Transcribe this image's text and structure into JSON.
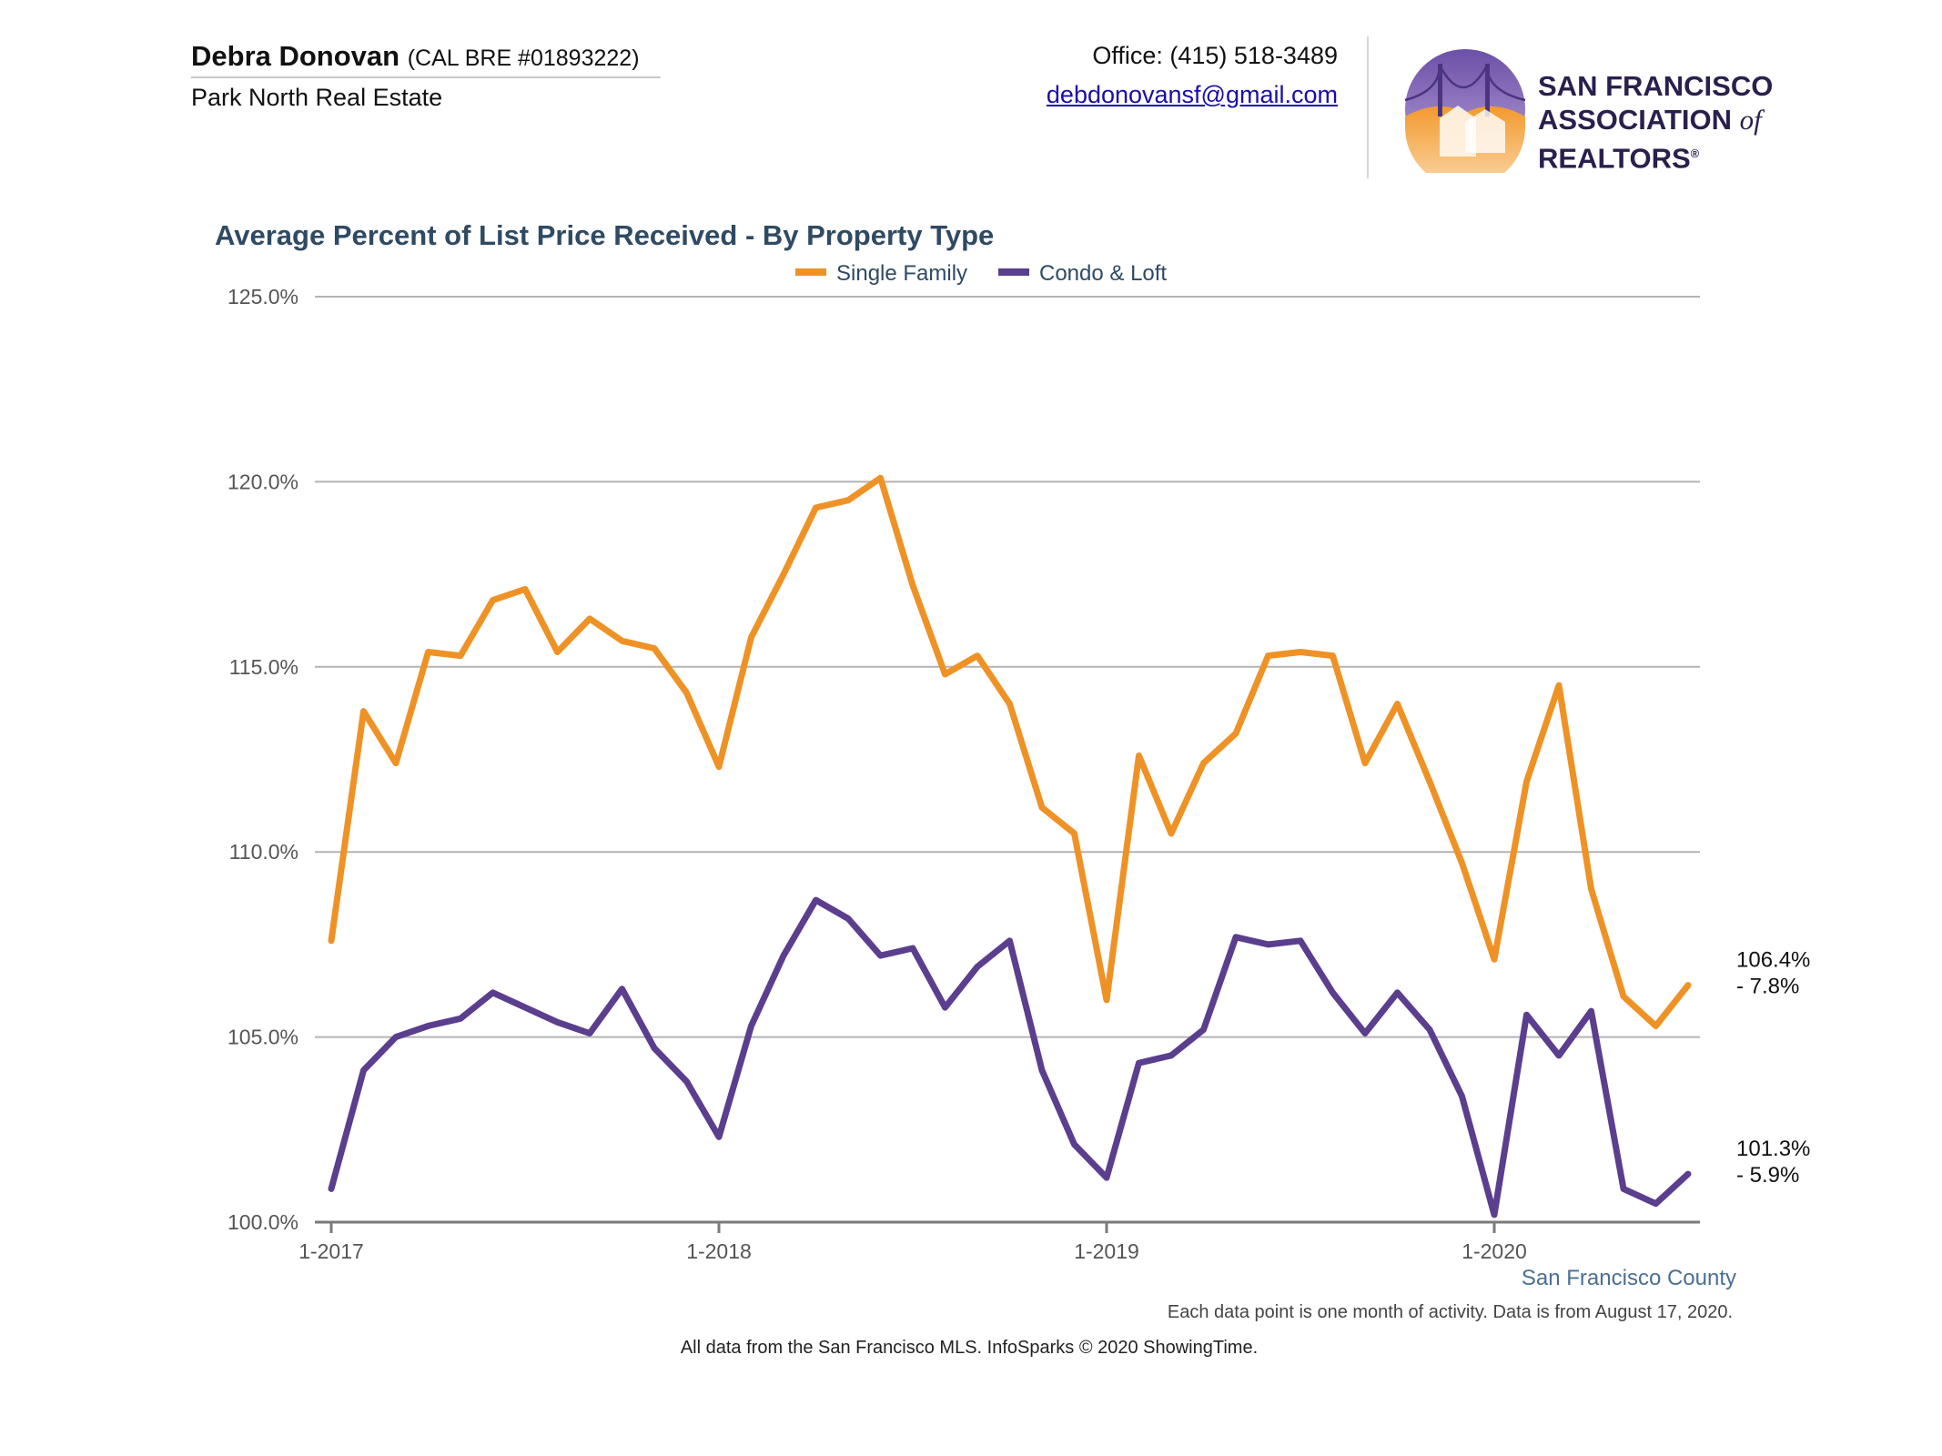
{
  "header": {
    "agent_name": "Debra Donovan",
    "license": "(CAL BRE #01893222)",
    "brokerage": "Park North Real Estate",
    "office_phone": "Office: (415) 518-3489",
    "email": "debdonovansf@gmail.com"
  },
  "logo": {
    "line1": "SAN FRANCISCO",
    "line2_a": "ASSOCIATION",
    "line2_of": "of",
    "line2_b": "REALTORS",
    "registered": "®"
  },
  "colors": {
    "single_family": "#ef9226",
    "condo_loft": "#5b3e8e",
    "title": "#2f4a63"
  },
  "chart_data": {
    "type": "line",
    "title": "Average Percent of List Price Received - By Property Type",
    "ylim": [
      100,
      125
    ],
    "yticks": [
      "100.0%",
      "105.0%",
      "110.0%",
      "115.0%",
      "120.0%",
      "125.0%"
    ],
    "xtick_labels": [
      "1-2017",
      "1-2018",
      "1-2019",
      "1-2020"
    ],
    "x": [
      "1-2017",
      "2-2017",
      "3-2017",
      "4-2017",
      "5-2017",
      "6-2017",
      "7-2017",
      "8-2017",
      "9-2017",
      "10-2017",
      "11-2017",
      "12-2017",
      "1-2018",
      "2-2018",
      "3-2018",
      "4-2018",
      "5-2018",
      "6-2018",
      "7-2018",
      "8-2018",
      "9-2018",
      "10-2018",
      "11-2018",
      "12-2018",
      "1-2019",
      "2-2019",
      "3-2019",
      "4-2019",
      "5-2019",
      "6-2019",
      "7-2019",
      "8-2019",
      "9-2019",
      "10-2019",
      "11-2019",
      "12-2019",
      "1-2020",
      "2-2020",
      "3-2020",
      "4-2020",
      "5-2020",
      "6-2020",
      "7-2020"
    ],
    "series": [
      {
        "name": "Single Family",
        "values": [
          107.6,
          113.8,
          112.4,
          115.4,
          115.3,
          116.8,
          117.1,
          115.4,
          116.3,
          115.7,
          115.5,
          114.3,
          112.3,
          115.8,
          117.5,
          119.3,
          119.5,
          120.1,
          117.2,
          114.8,
          115.3,
          114.0,
          111.2,
          110.5,
          106.0,
          112.6,
          110.5,
          112.4,
          113.2,
          115.3,
          115.4,
          115.3,
          112.4,
          114.0,
          111.9,
          109.7,
          107.1,
          111.9,
          114.5,
          109.0,
          106.1,
          105.3,
          106.4
        ],
        "end_label": "106.4%",
        "end_change": "- 7.8%"
      },
      {
        "name": "Condo & Loft",
        "values": [
          100.9,
          104.1,
          105.0,
          105.3,
          105.5,
          106.2,
          105.8,
          105.4,
          105.1,
          106.3,
          104.7,
          103.8,
          102.3,
          105.3,
          107.2,
          108.7,
          108.2,
          107.2,
          107.4,
          105.8,
          106.9,
          107.6,
          104.1,
          102.1,
          101.2,
          104.3,
          104.5,
          105.2,
          107.7,
          107.5,
          107.6,
          106.2,
          105.1,
          106.2,
          105.2,
          103.4,
          100.2,
          105.6,
          104.5,
          105.7,
          100.9,
          100.5,
          101.3
        ],
        "end_label": "101.3%",
        "end_change": "- 5.9%"
      }
    ],
    "legend_position": "top-center",
    "grid": true,
    "region_label": "San Francisco County",
    "note": "Each data point is one month of activity. Data is from August 17, 2020.",
    "source": "All data from the San Francisco MLS. InfoSparks © 2020 ShowingTime."
  }
}
